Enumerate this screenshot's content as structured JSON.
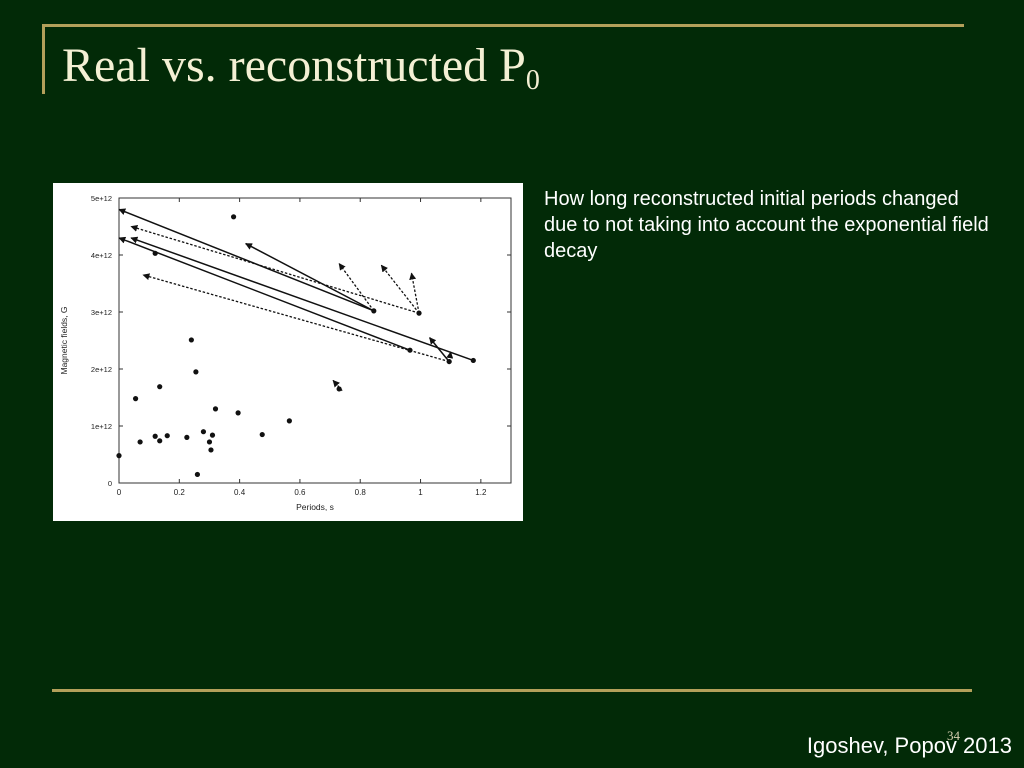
{
  "slide": {
    "title_main": "Real vs. reconstructed P",
    "title_sub": "0",
    "description": "How long reconstructed initial periods changed due to not taking into account the exponential field decay",
    "page_number": "34",
    "credit": "Igoshev, Popov 2013",
    "background_color": "#022a07",
    "rule_color": "#b3a05a"
  },
  "chart_data": {
    "type": "scatter",
    "xlabel": "Periods, s",
    "ylabel": "Magnetic fields, G",
    "xlim": [
      0,
      1.3
    ],
    "ylim": [
      0,
      5000000000000.0
    ],
    "xticks": [
      {
        "value": 0,
        "label": "0"
      },
      {
        "value": 0.2,
        "label": "0.2"
      },
      {
        "value": 0.4,
        "label": "0.4"
      },
      {
        "value": 0.6,
        "label": "0.6"
      },
      {
        "value": 0.8,
        "label": "0.8"
      },
      {
        "value": 1.0,
        "label": "1"
      },
      {
        "value": 1.2,
        "label": "1.2"
      }
    ],
    "yticks": [
      {
        "value": 0,
        "label": "0"
      },
      {
        "value": 1000000000000.0,
        "label": "1e+12"
      },
      {
        "value": 2000000000000.0,
        "label": "2e+12"
      },
      {
        "value": 3000000000000.0,
        "label": "3e+12"
      },
      {
        "value": 4000000000000.0,
        "label": "4e+12"
      },
      {
        "value": 5000000000000.0,
        "label": "5e+12"
      }
    ],
    "points": [
      {
        "x": 0.0,
        "y": 480000000000.0
      },
      {
        "x": 0.055,
        "y": 1480000000000.0
      },
      {
        "x": 0.07,
        "y": 720000000000.0
      },
      {
        "x": 0.12,
        "y": 820000000000.0
      },
      {
        "x": 0.12,
        "y": 4030000000000.0
      },
      {
        "x": 0.135,
        "y": 1690000000000.0
      },
      {
        "x": 0.135,
        "y": 740000000000.0
      },
      {
        "x": 0.16,
        "y": 830000000000.0
      },
      {
        "x": 0.225,
        "y": 800000000000.0
      },
      {
        "x": 0.24,
        "y": 2510000000000.0
      },
      {
        "x": 0.255,
        "y": 1950000000000.0
      },
      {
        "x": 0.26,
        "y": 150000000000.0
      },
      {
        "x": 0.28,
        "y": 900000000000.0
      },
      {
        "x": 0.3,
        "y": 720000000000.0
      },
      {
        "x": 0.305,
        "y": 580000000000.0
      },
      {
        "x": 0.31,
        "y": 840000000000.0
      },
      {
        "x": 0.32,
        "y": 1300000000000.0
      },
      {
        "x": 0.38,
        "y": 4670000000000.0
      },
      {
        "x": 0.395,
        "y": 1230000000000.0
      },
      {
        "x": 0.475,
        "y": 850000000000.0
      },
      {
        "x": 0.565,
        "y": 1090000000000.0
      },
      {
        "x": 0.73,
        "y": 1650000000000.0
      },
      {
        "x": 0.845,
        "y": 3020000000000.0
      },
      {
        "x": 0.965,
        "y": 2330000000000.0
      },
      {
        "x": 0.995,
        "y": 2980000000000.0
      },
      {
        "x": 1.095,
        "y": 2130000000000.0
      },
      {
        "x": 1.175,
        "y": 2150000000000.0
      }
    ],
    "arrows": [
      {
        "style": "solid",
        "from": [
          0.845,
          3020000000000.0
        ],
        "to": [
          0.0,
          4800000000000.0
        ]
      },
      {
        "style": "solid",
        "from": [
          0.845,
          3020000000000.0
        ],
        "to": [
          0.42,
          4200000000000.0
        ]
      },
      {
        "style": "dashed",
        "from": [
          0.995,
          2980000000000.0
        ],
        "to": [
          0.04,
          4500000000000.0
        ]
      },
      {
        "style": "dashed",
        "from": [
          0.845,
          3020000000000.0
        ],
        "to": [
          0.73,
          3850000000000.0
        ]
      },
      {
        "style": "dashed",
        "from": [
          0.995,
          2980000000000.0
        ],
        "to": [
          0.87,
          3820000000000.0
        ]
      },
      {
        "style": "dashed",
        "from": [
          0.995,
          2980000000000.0
        ],
        "to": [
          0.97,
          3680000000000.0
        ]
      },
      {
        "style": "solid",
        "from": [
          0.965,
          2330000000000.0
        ],
        "to": [
          0.0,
          4300000000000.0
        ]
      },
      {
        "style": "solid",
        "from": [
          1.175,
          2150000000000.0
        ],
        "to": [
          0.04,
          4300000000000.0
        ]
      },
      {
        "style": "dashed",
        "from": [
          1.095,
          2130000000000.0
        ],
        "to": [
          0.08,
          3650000000000.0
        ]
      },
      {
        "style": "solid",
        "from": [
          1.095,
          2130000000000.0
        ],
        "to": [
          1.03,
          2550000000000.0
        ]
      },
      {
        "style": "dashed",
        "from": [
          1.095,
          2130000000000.0
        ],
        "to": [
          1.1,
          2300000000000.0
        ]
      },
      {
        "style": "dashed",
        "from": [
          0.74,
          1620000000000.0
        ],
        "to": [
          0.71,
          1800000000000.0
        ]
      }
    ]
  }
}
